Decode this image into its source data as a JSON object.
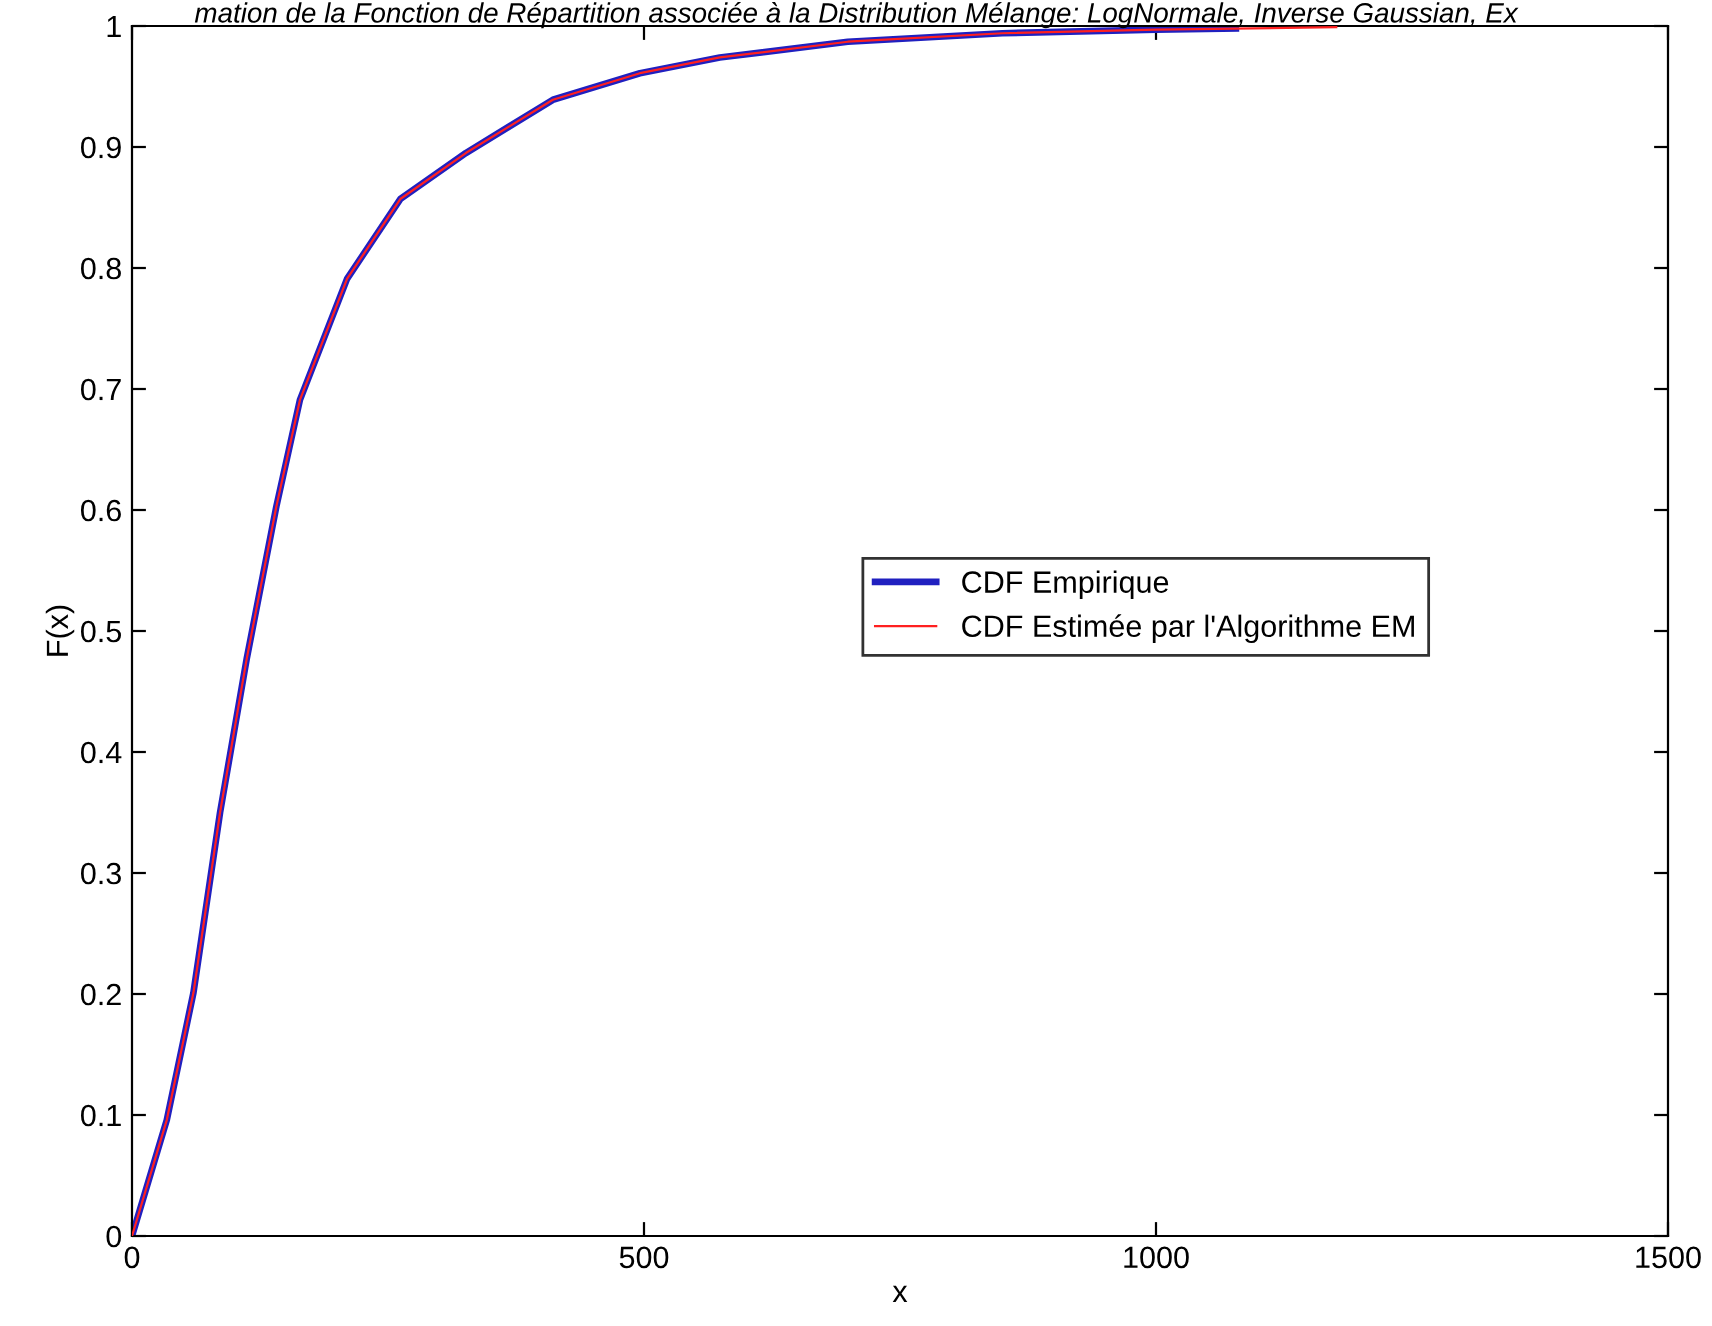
{
  "chart_data": {
    "type": "line",
    "title": "mation de la Fonction de Répartition associée à la Distribution Mélange: LogNormale, Inverse Gaussian, Ex",
    "xlabel": "x",
    "ylabel": "F(x)",
    "xlim": [
      0,
      1500
    ],
    "xticks": [
      0,
      500,
      1000,
      1500
    ],
    "ylim": [
      0,
      1
    ],
    "yticks": [
      0,
      0.1,
      0.2,
      0.3,
      0.4,
      0.5,
      0.6,
      0.7,
      0.8,
      0.9,
      1
    ],
    "grid": false,
    "legend": "right",
    "marker": "none",
    "line_style": "solid",
    "series": [
      {
        "name": "CDF Empirique",
        "color": "#2020c0",
        "x": [
          0,
          34,
          60,
          86,
          112,
          141,
          164,
          210,
          262,
          326,
          411,
          496,
          574,
          699,
          850,
          1000,
          1078
        ],
        "values": [
          0,
          0.096,
          0.201,
          0.35,
          0.477,
          0.603,
          0.691,
          0.791,
          0.857,
          0.895,
          0.939,
          0.961,
          0.974,
          0.987,
          0.994,
          0.997,
          0.998
        ]
      },
      {
        "name": "CDF Estimée par l'Algorithme EM",
        "color": "#ff2020",
        "x": [
          0,
          34,
          60,
          86,
          112,
          141,
          164,
          210,
          262,
          326,
          411,
          496,
          574,
          699,
          850,
          1000,
          1176
        ],
        "values": [
          0,
          0.096,
          0.201,
          0.35,
          0.477,
          0.603,
          0.691,
          0.791,
          0.857,
          0.895,
          0.939,
          0.961,
          0.974,
          0.987,
          0.994,
          0.997,
          0.999
        ]
      }
    ]
  }
}
